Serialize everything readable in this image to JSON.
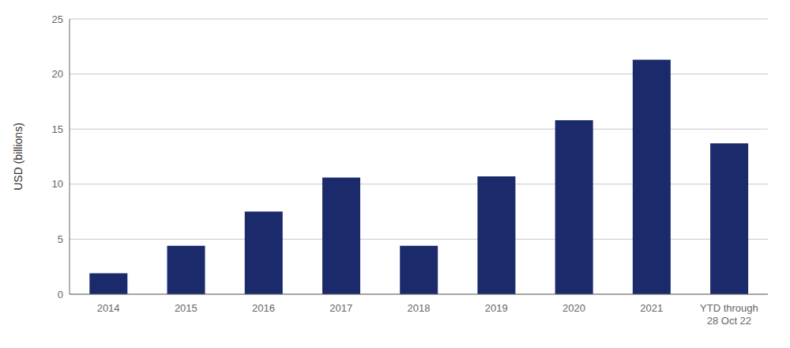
{
  "chart_data": {
    "type": "bar",
    "categories": [
      "2014",
      "2015",
      "2016",
      "2017",
      "2018",
      "2019",
      "2020",
      "2021",
      "YTD through\n28 Oct 22"
    ],
    "values": [
      1.9,
      4.4,
      7.5,
      10.6,
      4.4,
      10.7,
      15.8,
      21.3,
      13.7
    ],
    "color": "#1b2a6b",
    "ylabel": "USD (billions)",
    "ylim": [
      0,
      25
    ],
    "yticks": [
      0,
      5,
      10,
      15,
      20,
      25
    ],
    "grid": true
  }
}
